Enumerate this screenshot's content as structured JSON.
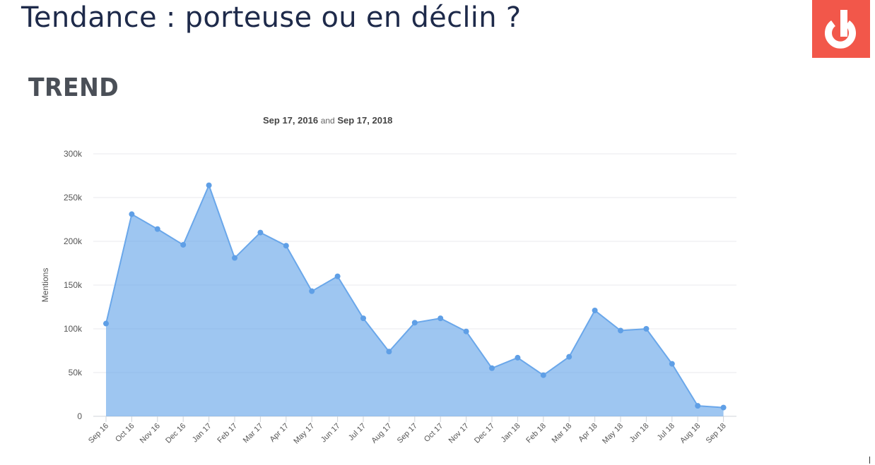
{
  "slide": {
    "title": "Tendance : porteuse ou en déclin ?",
    "section_heading": "TREND"
  },
  "logo": {
    "icon": "brand-logo-icon",
    "color": "#f2574a"
  },
  "chart_data": {
    "type": "area",
    "subtitle_start": "Sep 17, 2016",
    "subtitle_and": "and",
    "subtitle_end": "Sep 17, 2018",
    "ylabel": "Mentions",
    "xlabel": "",
    "ylim": [
      0,
      300000
    ],
    "yticks": [
      0,
      50000,
      100000,
      150000,
      200000,
      250000,
      300000
    ],
    "ytick_labels": [
      "0",
      "50k",
      "100k",
      "150k",
      "200k",
      "250k",
      "300k"
    ],
    "grid": true,
    "legend": "none",
    "color": "#6aa7ea",
    "categories": [
      "Sep 16",
      "Oct 16",
      "Nov 16",
      "Dec 16",
      "Jan 17",
      "Feb 17",
      "Mar 17",
      "Apr 17",
      "May 17",
      "Jun 17",
      "Jul 17",
      "Aug 17",
      "Sep 17",
      "Oct 17",
      "Nov 17",
      "Dec 17",
      "Jan 18",
      "Feb 18",
      "Mar 18",
      "Apr 18",
      "May 18",
      "Jun 18",
      "Jul 18",
      "Aug 18",
      "Sep 18"
    ],
    "values": [
      106000,
      231000,
      214000,
      196000,
      264000,
      181000,
      210000,
      195000,
      143000,
      160000,
      112000,
      74000,
      107000,
      112000,
      97000,
      55000,
      67000,
      47000,
      68000,
      121000,
      98000,
      100000,
      60000,
      12000,
      10000
    ]
  }
}
